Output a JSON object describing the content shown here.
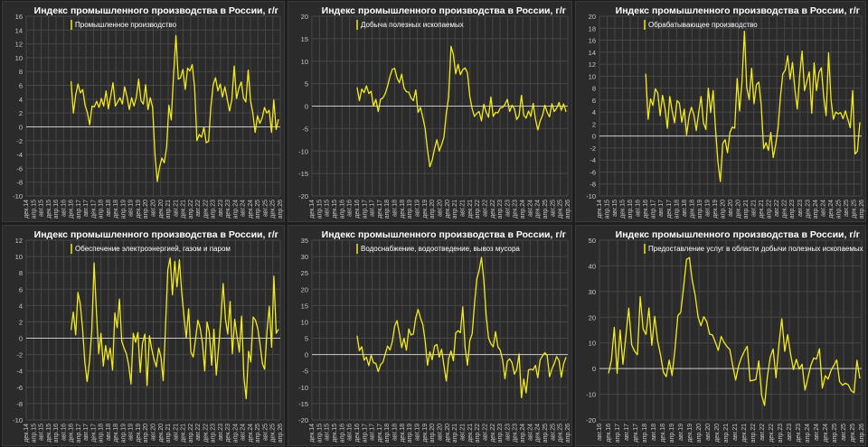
{
  "colors": {
    "line": "#f2ea1f",
    "grid": "#474747",
    "zero": "#c8c8c8",
    "tick": "#c8c8c8",
    "panel_bg": "#2b2b2b"
  },
  "chart_data": [
    {
      "type": "line",
      "title": "Индекс промышленного производства в России, г/г",
      "legend": "Промышленное производство",
      "ylim": [
        -10,
        16
      ],
      "ystep": 2,
      "x_ticks": [
        "дек.14",
        "апр.15",
        "авг.15",
        "дек.15",
        "апр.16",
        "авг.16",
        "дек.16",
        "апр.17",
        "авг.17",
        "дек.17",
        "апр.18",
        "авг.18",
        "дек.18",
        "апр.19",
        "авг.19",
        "дек.19",
        "апр.20",
        "авг.20",
        "дек.20",
        "апр.21",
        "авг.21",
        "дек.21",
        "апр.22",
        "авг.22",
        "дек.22",
        "апр.23",
        "авг.23",
        "дек.23",
        "апр.24",
        "авг.24",
        "дек.24",
        "апр.25",
        "авг.25",
        "дек.25",
        "апр.26"
      ],
      "start_tick": 6,
      "values": [
        6.6,
        2,
        4.6,
        6.2,
        4.9,
        5.4,
        3.1,
        2.1,
        0.3,
        3,
        2.9,
        3.7,
        2.8,
        4.1,
        3,
        5.2,
        2.6,
        4.4,
        6.4,
        3,
        3.6,
        4.2,
        3.3,
        5.8,
        4.3,
        2.5,
        4.2,
        3,
        4.3,
        6.9,
        3.8,
        3.3,
        6.1,
        2.5,
        4.2,
        2.8,
        -4,
        -7.9,
        -5.8,
        -4.5,
        -5.2,
        -2.9,
        3.1,
        1,
        7.6,
        13.2,
        6.9,
        7.1,
        8.3,
        5.4,
        8.5,
        8.1,
        9,
        5.8,
        -2,
        -1.1,
        -1.5,
        -0.1,
        -2.3,
        -2.1,
        2.9,
        6.1,
        7.1,
        5.2,
        6.2,
        4.3,
        5.8,
        4,
        2.3,
        3.9,
        8.8,
        4.1,
        5.6,
        6.5,
        4.2,
        3.6,
        8.2,
        3.8,
        2,
        -0.8,
        1.6,
        0.5,
        1.3,
        2.8,
        2,
        2.4,
        -0.8,
        3.9,
        -0.4,
        1.1
      ]
    },
    {
      "type": "line",
      "title": "Индекс промышленного производства в России, г/г",
      "legend": "Добыча полезных ископаемых",
      "ylim": [
        -20,
        20
      ],
      "ystep": 5,
      "x_ticks": [
        "дек.14",
        "апр.15",
        "авг.15",
        "дек.15",
        "апр.16",
        "авг.16",
        "дек.16",
        "апр.17",
        "авг.17",
        "дек.17",
        "апр.18",
        "авг.18",
        "дек.18",
        "апр.19",
        "авг.19",
        "дек.19",
        "апр.20",
        "авг.20",
        "дек.20",
        "апр.21",
        "авг.21",
        "дек.21",
        "апр.22",
        "авг.22",
        "дек.22",
        "апр.23",
        "авг.23",
        "дек.23",
        "апр.24",
        "авг.24",
        "дек.24",
        "апр.25",
        "авг.25",
        "дек.25",
        "апр.26"
      ],
      "start_tick": 6,
      "values": [
        4.2,
        1.2,
        3.8,
        3,
        4.5,
        2.8,
        3.3,
        0,
        1.5,
        -1.2,
        1.5,
        1.8,
        2.8,
        4.5,
        6.6,
        8.2,
        8.4,
        6.3,
        5.2,
        7.1,
        4,
        3.2,
        3.1,
        1.8,
        1.2,
        3.6,
        -1.4,
        -0.3,
        -2.5,
        -5,
        -9.7,
        -13.5,
        -12,
        -9.5,
        -7.5,
        -10,
        -8.6,
        -6.9,
        -1.6,
        2,
        13.3,
        11.5,
        7.2,
        9.3,
        7,
        8.1,
        8.5,
        7.4,
        2.2,
        -0.6,
        -2.3,
        -1.6,
        -1.2,
        -3.3,
        0.4,
        -1.3,
        -2.5,
        2,
        -2.3,
        -1.4,
        -1.5,
        -0.4,
        -0.3,
        0.4,
        1.5,
        -1.2,
        0.2,
        -0.6,
        -3,
        -2.1,
        2.4,
        -2,
        -2.7,
        -1.1,
        -2.3,
        0.6,
        -2.9,
        -5.3,
        -3.3,
        -2.1,
        0.2,
        -1.4,
        -2.4,
        0.5,
        -1.2,
        -0.5,
        0.8,
        -0.9,
        0.5,
        -1.3
      ]
    },
    {
      "type": "line",
      "title": "Индекс промышленного производства в России, г/г",
      "legend": "Обрабатывающее производство",
      "ylim": [
        -10,
        20
      ],
      "ystep": 2,
      "x_ticks": [
        "дек.14",
        "апр.15",
        "авг.15",
        "дек.15",
        "апр.16",
        "авг.16",
        "дек.16",
        "апр.17",
        "авг.17",
        "дек.17",
        "апр.18",
        "авг.18",
        "дек.18",
        "апр.19",
        "авг.19",
        "дек.19",
        "апр.20",
        "авг.20",
        "дек.20",
        "апр.21",
        "авг.21",
        "дек.21",
        "апр.22",
        "авг.22",
        "дек.22",
        "апр.23",
        "авг.23",
        "дек.23",
        "апр.24",
        "авг.24",
        "дек.24",
        "апр.25",
        "авг.25",
        "дек.25",
        "апр.26"
      ],
      "start_tick": 6,
      "values": [
        10.4,
        2.8,
        6.2,
        5.1,
        7.9,
        7.2,
        3.4,
        6.8,
        4.6,
        1.3,
        6.6,
        4.2,
        2.2,
        5.9,
        5.5,
        2.3,
        4.5,
        0.2,
        3.3,
        4.8,
        3.6,
        0.9,
        3.9,
        6.6,
        2.2,
        1.1,
        8,
        3.9,
        7.6,
        1.4,
        -4.3,
        -7.6,
        -1.3,
        -0.6,
        -2.8,
        0.6,
        1.5,
        1.3,
        9.6,
        4.2,
        9,
        17.5,
        8.1,
        6.1,
        11.3,
        5.4,
        8.6,
        9,
        5.2,
        -2.1,
        -1.1,
        -2.4,
        0.6,
        -3.6,
        -1.4,
        1.3,
        6.6,
        10.4,
        11,
        13.4,
        9.5,
        12.3,
        7.7,
        4.5,
        10.2,
        14.2,
        7.6,
        9.2,
        10.7,
        3.8,
        12.2,
        7.6,
        10.6,
        11.4,
        6.4,
        3.4,
        13.9,
        6.1,
        2.8,
        4,
        3.7,
        3.9,
        2.9,
        4.2,
        2.8,
        1.4,
        7.6,
        -3,
        -2.5,
        2.3
      ]
    },
    {
      "type": "line",
      "title": "Индекс промышленного производства в России, г/г",
      "legend": "Обеспечение электроэнергией, газом и паром",
      "ylim": [
        -10,
        12
      ],
      "ystep": 2,
      "x_ticks": [
        "дек.14",
        "апр.15",
        "авг.15",
        "дек.15",
        "апр.16",
        "авг.16",
        "дек.16",
        "апр.17",
        "авг.17",
        "дек.17",
        "апр.18",
        "авг.18",
        "дек.18",
        "апр.19",
        "авг.19",
        "дек.19",
        "апр.20",
        "авг.20",
        "дек.20",
        "апр.21",
        "авг.21",
        "дек.21",
        "апр.22",
        "авг.22",
        "дек.22",
        "апр.23",
        "авг.23",
        "дек.23",
        "апр.24",
        "авг.24",
        "дек.24",
        "апр.25",
        "авг.25",
        "дек.25",
        "апр.26"
      ],
      "start_tick": 6,
      "values": [
        1,
        3.2,
        0.4,
        5.6,
        4.2,
        1.2,
        -3,
        -5.3,
        -2.8,
        0.9,
        9.2,
        3.3,
        -1.9,
        0.6,
        -3.4,
        -0.9,
        -2.6,
        -1.2,
        -3.9,
        3.1,
        1.3,
        4.8,
        -0.4,
        -1.2,
        -1.9,
        -3.3,
        -5.6,
        0.6,
        -0.5,
        0.7,
        -4.2,
        -0.6,
        0.5,
        -5.8,
        0.3,
        -1.3,
        -2.6,
        -3.5,
        -1.2,
        -2.3,
        -5.2,
        1.5,
        8.4,
        9.8,
        5.3,
        9.4,
        6.3,
        9.6,
        5.7,
        2.7,
        0,
        3.6,
        -1.7,
        -2.3,
        -0.2,
        2.2,
        1.3,
        -0.6,
        -4,
        2,
        0.7,
        -3.3,
        1.1,
        -4.5,
        -1.2,
        2.3,
        6.7,
        2.3,
        0.5,
        4.5,
        -1.9,
        2.3,
        0.3,
        -1.7,
        2.7,
        -4.8,
        -7.4,
        -1.6,
        -2.9,
        2.6,
        2.2,
        1.2,
        -0.7,
        -3.1,
        -3.8,
        0.8,
        3.9,
        -1.1,
        7.6,
        0.6,
        1.1
      ]
    },
    {
      "type": "line",
      "title": "Индекс промышленного производства в России, г/г",
      "legend": "Водоснабжение, водоотведение, вывоз мусора",
      "ylim": [
        -20,
        35
      ],
      "ystep": 5,
      "x_ticks": [
        "дек.14",
        "апр.15",
        "авг.15",
        "дек.15",
        "апр.16",
        "авг.16",
        "дек.16",
        "апр.17",
        "авг.17",
        "дек.17",
        "апр.18",
        "авг.18",
        "дек.18",
        "апр.19",
        "авг.19",
        "дек.19",
        "апр.20",
        "авг.20",
        "дек.20",
        "апр.21",
        "авг.21",
        "дек.21",
        "апр.22",
        "авг.22",
        "дек.22",
        "апр.23",
        "авг.23",
        "дек.23",
        "апр.24",
        "авг.24",
        "дек.24",
        "апр.25",
        "авг.25",
        "дек.25",
        "апр.26"
      ],
      "start_tick": 6,
      "values": [
        5.8,
        1.2,
        2.4,
        -1.7,
        -0.8,
        -3.4,
        -0.2,
        -2.5,
        -2.7,
        -5.2,
        -3.1,
        -2.3,
        0.2,
        2.6,
        1.4,
        4,
        8.7,
        10.4,
        6.5,
        2.1,
        5,
        1.3,
        7.8,
        6,
        6.3,
        11.2,
        13.8,
        11.3,
        9.2,
        4.3,
        -3.3,
        0.8,
        -1.6,
        2.6,
        3.1,
        -0.8,
        1.6,
        -3.4,
        -8.1,
        -1.3,
        1.1,
        -1.9,
        6.6,
        7.3,
        6.7,
        14.6,
        2.2,
        -3.3,
        4.3,
        6.3,
        15.2,
        23.1,
        25.7,
        29.7,
        22.8,
        12,
        5.1,
        3.3,
        2.4,
        7,
        2.4,
        1.3,
        -1.7,
        -7.4,
        -2.1,
        -1.3,
        -2.5,
        -6,
        -4.6,
        0.2,
        -13.2,
        -7.5,
        -11.7,
        -4.7,
        -4.5,
        -4.7,
        -3.3,
        -7.1,
        -1.6,
        -0.4,
        0.6,
        -0.3,
        -6.8,
        -4.4,
        -2.8,
        -0.6,
        -1.8,
        -6.9,
        -2.8,
        -0.8
      ]
    },
    {
      "type": "line",
      "title": "Индекс промышленного производства в России, г/г",
      "legend": "Предоставление услуг в области добычи полезных ископаемых",
      "ylim": [
        -20,
        50
      ],
      "ystep": 10,
      "x_ticks": [
        "авг.16",
        "дек.16",
        "апр.17",
        "авг.17",
        "дек.17",
        "апр.18",
        "авг.18",
        "дек.18",
        "апр.19",
        "авг.19",
        "дек.19",
        "апр.20",
        "авг.20",
        "дек.20",
        "апр.21",
        "авг.21",
        "дек.21",
        "апр.22",
        "авг.22",
        "дек.22",
        "апр.23",
        "авг.23",
        "дек.23",
        "апр.24",
        "авг.24",
        "дек.24",
        "апр.25",
        "авг.25",
        "дек.25",
        "апр.26"
      ],
      "start_tick": 1,
      "values": [
        -1.9,
        3.2,
        16.1,
        -1.9,
        15,
        1.7,
        12.7,
        23.5,
        9.3,
        6.8,
        5.4,
        28,
        15.4,
        13.3,
        23.6,
        9.1,
        20.3,
        10.8,
        5.4,
        -1.4,
        -3.2,
        3.3,
        -2.7,
        7.5,
        20.6,
        21.9,
        31.9,
        42.5,
        43.2,
        34.2,
        28.5,
        20,
        16.7,
        20.2,
        18.3,
        13.4,
        13.1,
        10.2,
        7.1,
        12.5,
        10.2,
        8.6,
        7.4,
        1.1,
        -4.5,
        0.9,
        4.3,
        6.7,
        8.7,
        -4.8,
        -4.6,
        -4.2,
        3,
        -10.4,
        -14.4,
        -3.2,
        4.5,
        7.6,
        -3.6,
        9.5,
        19.4,
        6.7,
        13.2,
        5.9,
        -0.4,
        3.6,
        -0.2,
        1.7,
        -8.4,
        -3.8,
        1.1,
        4.1,
        3.7,
        7.7,
        -7.6,
        -2.8,
        -4.1,
        -0.8,
        1.2,
        3.4,
        -5.1,
        -6.5,
        -5.7,
        -6.3,
        -8.6,
        -9.4,
        3.2,
        -3.9
      ]
    }
  ]
}
